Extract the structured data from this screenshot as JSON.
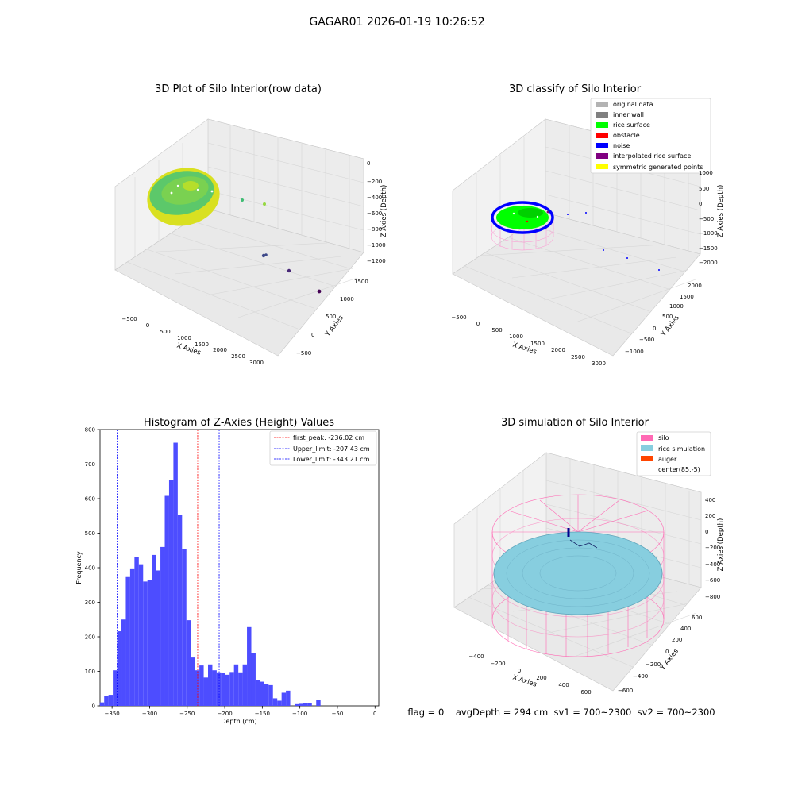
{
  "figure": {
    "suptitle": "GAGAR01 2026-01-19 10:26:52",
    "footer": "flag = 0    avgDepth = 294 cm  sv1 = 700~2300  sv2 = 700~2300"
  },
  "colors": {
    "pane": "#f2f2f2",
    "grid": "#d6d6d6",
    "hist_bar": "#4d4dff",
    "silo": "#ff69b4",
    "rice": "#87cedf",
    "auger": "#ff4500",
    "rice_surface": "#00ff00",
    "noise": "#0000ff",
    "obstacle": "#ff0000",
    "symmetric": "#ffff00",
    "interpolated": "#800080",
    "original": "#b3b3b3",
    "inner_wall": "#808080"
  },
  "chart_data": [
    {
      "type": "scatter",
      "title": "3D Plot of Silo Interior(row data)",
      "xlabel": "X Axies",
      "ylabel": "Y Axies",
      "zlabel": "Z Axies (Depth)",
      "x_ticks": [
        "−500",
        "0",
        "500",
        "1000",
        "1500",
        "2000",
        "2500",
        "3000"
      ],
      "y_ticks": [
        "−500",
        "0",
        "500",
        "1000",
        "1500"
      ],
      "z_ticks": [
        "0",
        "−200",
        "−400",
        "−600",
        "−800",
        "−1000",
        "−1200"
      ],
      "grid": true
    },
    {
      "type": "scatter",
      "title": "3D classify of Silo Interior",
      "xlabel": "X Axies",
      "ylabel": "Y Axies",
      "zlabel": "Z Axies (Depth)",
      "x_ticks": [
        "−500",
        "0",
        "500",
        "1000",
        "1500",
        "2000",
        "2500",
        "3000"
      ],
      "y_ticks": [
        "−1000",
        "−500",
        "0",
        "500",
        "1000",
        "1500",
        "2000"
      ],
      "z_ticks": [
        "1000",
        "500",
        "0",
        "−500",
        "−1000",
        "−1500",
        "−2000"
      ],
      "legend": [
        {
          "label": "original data",
          "color": "#b3b3b3"
        },
        {
          "label": "inner wall",
          "color": "#808080"
        },
        {
          "label": "rice surface",
          "color": "#00ff00"
        },
        {
          "label": "obstacle",
          "color": "#ff0000"
        },
        {
          "label": "noise",
          "color": "#0000ff"
        },
        {
          "label": "interpolated rice surface",
          "color": "#800080"
        },
        {
          "label": "symmetric generated points",
          "color": "#ffff00"
        }
      ],
      "legend_position": "top-right",
      "grid": true
    },
    {
      "type": "bar",
      "title": "Histogram of Z-Axies (Height) Values",
      "xlabel": "Depth (cm)",
      "ylabel": "Frequency",
      "xlim": [
        -366,
        5
      ],
      "ylim": [
        0,
        800
      ],
      "x_ticks": [
        -350,
        -300,
        -250,
        -200,
        -150,
        -100,
        -50,
        0
      ],
      "x_tick_labels": [
        "−350",
        "−300",
        "−250",
        "−200",
        "−150",
        "−100",
        "−50",
        "0"
      ],
      "y_ticks": [
        0,
        100,
        200,
        300,
        400,
        500,
        600,
        700,
        800
      ],
      "bin_width": 5.76,
      "bin_start": -343.21,
      "values": [
        10,
        28,
        32,
        103,
        216,
        250,
        373,
        398,
        430,
        410,
        360,
        365,
        437,
        392,
        460,
        608,
        655,
        762,
        553,
        455,
        248,
        140,
        103,
        117,
        82,
        120,
        103,
        97,
        95,
        90,
        98,
        120,
        97,
        120,
        228,
        153,
        75,
        70,
        63,
        60,
        22,
        15,
        38,
        44,
        0,
        5,
        6,
        8,
        8,
        0,
        17
      ],
      "vlines": [
        {
          "label": "first_peak: -236.02 cm",
          "x": -236.02,
          "color": "#ff0000"
        },
        {
          "label": "Upper_limit: -207.43 cm",
          "x": -207.43,
          "color": "#0000ff"
        },
        {
          "label": "Lower_limit: -343.21 cm",
          "x": -343.21,
          "color": "#0000ff"
        }
      ],
      "legend_position": "top-right"
    },
    {
      "type": "scatter",
      "title": "3D simulation of Silo Interior",
      "xlabel": "X Axies",
      "ylabel": "Y Axies",
      "zlabel": "Z Axies (Depth)",
      "x_ticks": [
        "−400",
        "−200",
        "0",
        "200",
        "400",
        "600"
      ],
      "y_ticks": [
        "−600",
        "−400",
        "−200",
        "0",
        "200",
        "400",
        "600"
      ],
      "z_ticks": [
        "400",
        "200",
        "0",
        "−200",
        "−400",
        "−600",
        "−800"
      ],
      "legend": [
        {
          "label": "silo",
          "color": "#ff69b4"
        },
        {
          "label": "rice simulation",
          "color": "#87cedf"
        },
        {
          "label": "auger",
          "color": "#ff4500"
        },
        {
          "label": "center(85,-5)",
          "color": ""
        }
      ],
      "legend_position": "top-right",
      "grid": true
    }
  ]
}
